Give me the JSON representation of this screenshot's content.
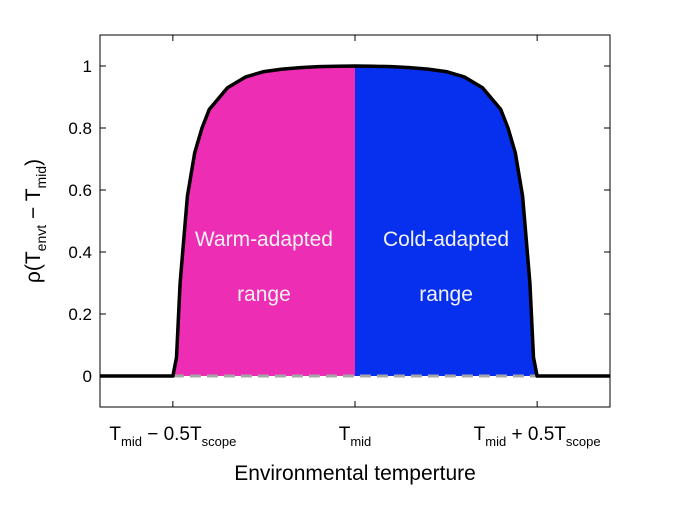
{
  "chart_data": {
    "type": "area",
    "xlabel": "Environmental temperture",
    "ylabel": {
      "rho": "ρ(T",
      "sub1": "envt",
      "minus": " − T",
      "sub2": "mid",
      "close": ")"
    },
    "xlim": [
      -0.7,
      0.7
    ],
    "ylim": [
      -0.1,
      1.1
    ],
    "yticks": [
      0,
      0.2,
      0.4,
      0.6,
      0.8,
      1
    ],
    "ytick_labels": [
      "0",
      "0.2",
      "0.4",
      "0.6",
      "0.8",
      "1"
    ],
    "xtick_values": [
      -0.5,
      0,
      0.5
    ],
    "xticks": [
      {
        "base": "T",
        "sub": "mid",
        "op": " − 0.5T",
        "sub2": "scope"
      },
      {
        "base": "T",
        "sub": "mid",
        "op": "",
        "sub2": ""
      },
      {
        "base": "T",
        "sub": "mid",
        "op": " + 0.5T",
        "sub2": "scope"
      }
    ],
    "curve": {
      "x": [
        -0.7,
        -0.5,
        -0.49,
        -0.48,
        -0.46,
        -0.44,
        -0.42,
        -0.4,
        -0.35,
        -0.3,
        -0.25,
        -0.2,
        -0.15,
        -0.1,
        -0.05,
        0,
        0.05,
        0.1,
        0.15,
        0.2,
        0.25,
        0.3,
        0.35,
        0.4,
        0.42,
        0.44,
        0.46,
        0.48,
        0.49,
        0.5,
        0.7
      ],
      "y": [
        0,
        0,
        0.06,
        0.3,
        0.58,
        0.72,
        0.8,
        0.86,
        0.93,
        0.965,
        0.982,
        0.99,
        0.995,
        0.998,
        0.999,
        1.0,
        0.999,
        0.998,
        0.995,
        0.99,
        0.982,
        0.965,
        0.93,
        0.86,
        0.8,
        0.72,
        0.58,
        0.3,
        0.06,
        0,
        0
      ]
    },
    "regions": [
      {
        "name": "Warm-adapted range",
        "from": -0.5,
        "to": 0,
        "color": "#ee2db5",
        "label_lines": [
          "Warm-adapted",
          "range"
        ]
      },
      {
        "name": "Cold-adapted range",
        "from": 0,
        "to": 0.5,
        "color": "#0630ee",
        "label_lines": [
          "Cold-adapted",
          "range"
        ]
      }
    ],
    "baseline": {
      "y": 0,
      "style": "dashed",
      "color": "#a6a6a6",
      "from": -0.5,
      "to": 0.5
    },
    "grid": false,
    "legend": "none"
  }
}
